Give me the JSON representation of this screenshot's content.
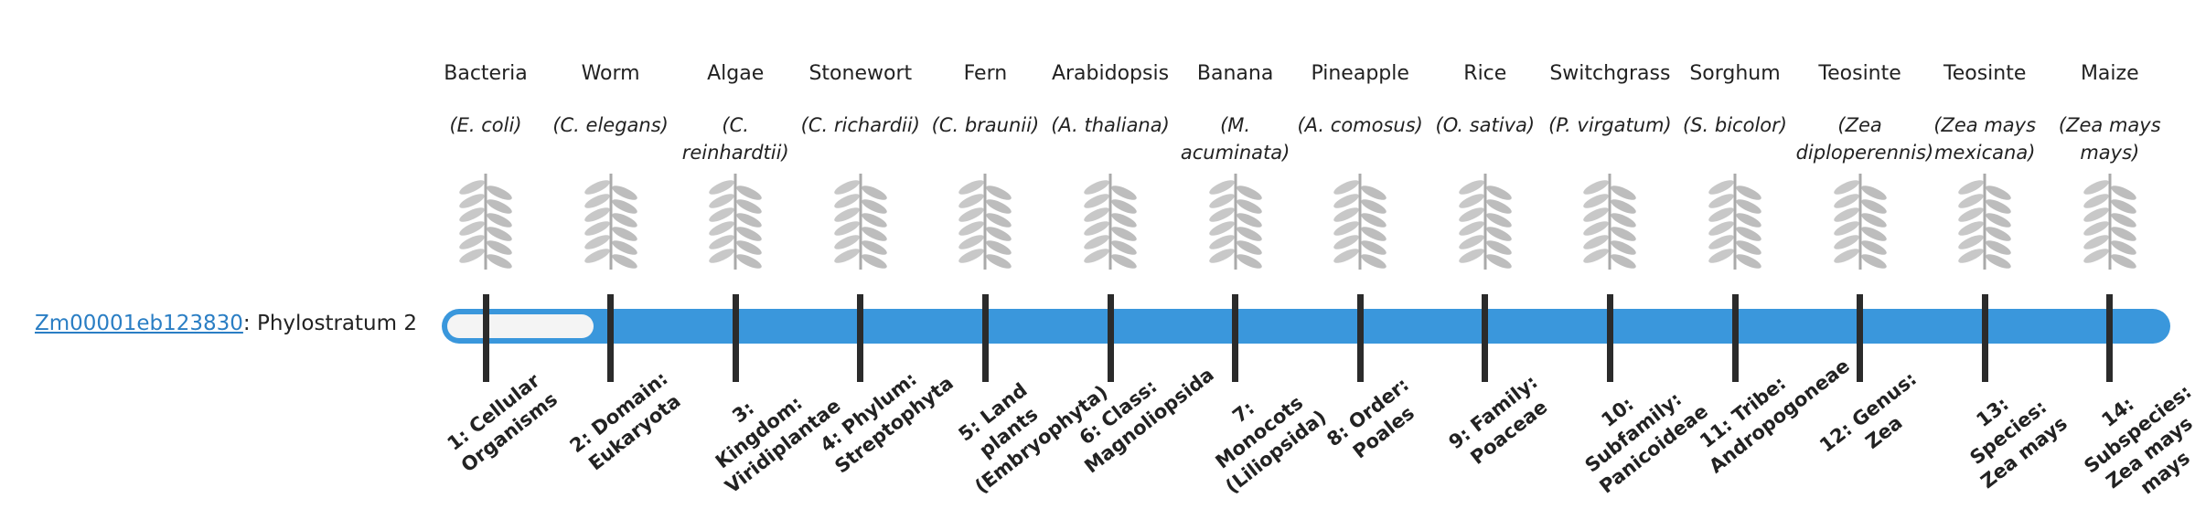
{
  "gene": {
    "id": "Zm00001eb123830",
    "label": ": Phylostratum 2"
  },
  "strata": [
    {
      "name": "Bacteria",
      "species": "(E. coli)",
      "rank": "1: Cellular Organisms"
    },
    {
      "name": "Worm",
      "species": "(C. elegans)",
      "rank": "2: Domain: Eukaryota"
    },
    {
      "name": "Algae",
      "species": "(C. reinhardtii)",
      "rank": "3: Kingdom: Viridiplantae"
    },
    {
      "name": "Stonewort",
      "species": "(C. richardii)",
      "rank": "4: Phylum: Streptophyta"
    },
    {
      "name": "Fern",
      "species": "(C. braunii)",
      "rank": "5: Land plants (Embryophyta)"
    },
    {
      "name": "Arabidopsis",
      "species": "(A. thaliana)",
      "rank": "6: Class: Magnoliopsida"
    },
    {
      "name": "Banana",
      "species": "(M. acuminata)",
      "rank": "7: Monocots (Liliopsida)"
    },
    {
      "name": "Pineapple",
      "species": "(A. comosus)",
      "rank": "8: Order: Poales"
    },
    {
      "name": "Rice",
      "species": "(O. sativa)",
      "rank": "9: Family: Poaceae"
    },
    {
      "name": "Switchgrass",
      "species": "(P. virgatum)",
      "rank": "10: Subfamily: Panicoideae"
    },
    {
      "name": "Sorghum",
      "species": "(S. bicolor)",
      "rank": "11: Tribe: Andropogoneae"
    },
    {
      "name": "Teosinte",
      "species": "(Zea diploperennis)",
      "rank": "12: Genus: Zea"
    },
    {
      "name": "Teosinte",
      "species": "(Zea mays mexicana)",
      "rank": "13: Species: Zea mays"
    },
    {
      "name": "Maize",
      "species": "(Zea mays mays)",
      "rank": "14: Subspecies: Zea mays mays"
    }
  ]
}
